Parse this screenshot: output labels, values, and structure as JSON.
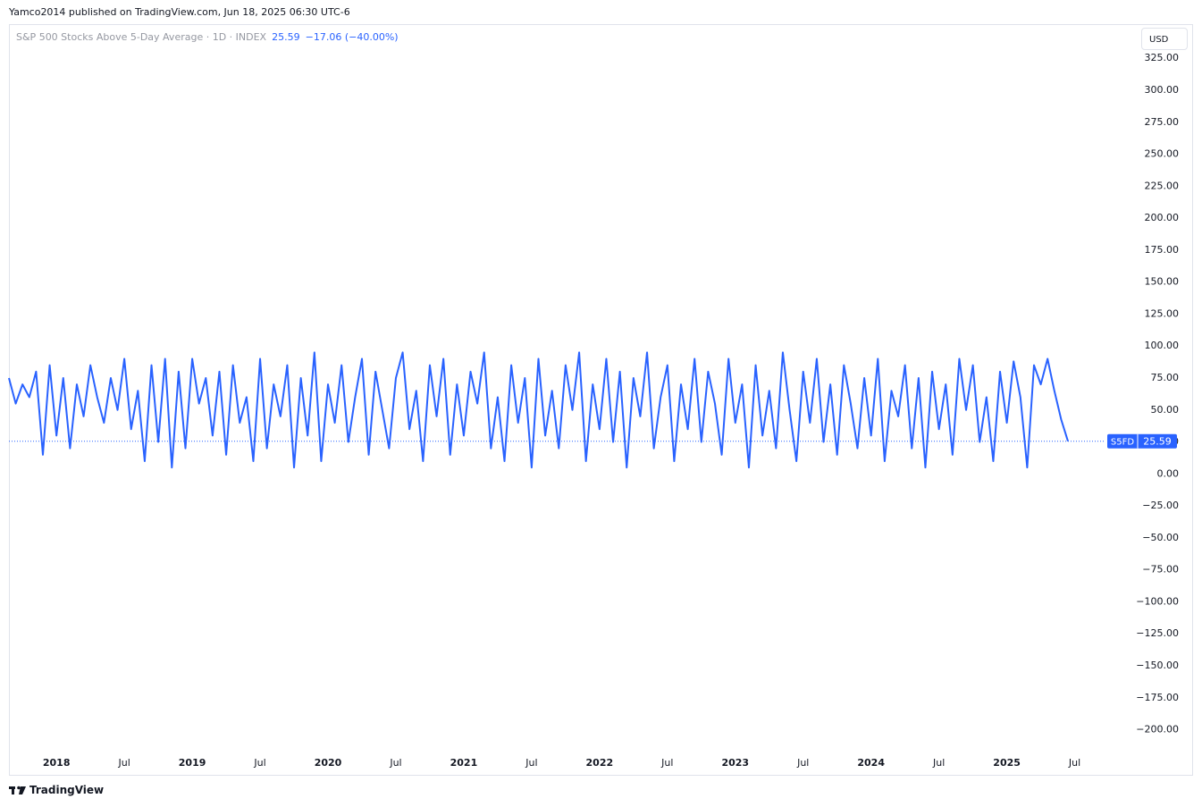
{
  "header": {
    "publisher": "Yamco2014 published on TradingView.com, Jun 18, 2025 06:30 UTC-6",
    "brand": "TradingView"
  },
  "chart_data": {
    "type": "line",
    "title": "S&P 500 Stocks Above 5-Day Average · 1D · INDEX",
    "change_label": "−17.06 (−40.00%)",
    "currency": "USD",
    "x": [
      2017.65,
      2017.7,
      2017.75,
      2017.8,
      2017.85,
      2017.9,
      2017.95,
      2018,
      2018.05,
      2018.1,
      2018.15,
      2018.2,
      2018.25,
      2018.3,
      2018.35,
      2018.4,
      2018.45,
      2018.5,
      2018.55,
      2018.6,
      2018.65,
      2018.7,
      2018.75,
      2018.8,
      2018.85,
      2018.9,
      2018.95,
      2019,
      2019.05,
      2019.1,
      2019.15,
      2019.2,
      2019.25,
      2019.3,
      2019.35,
      2019.4,
      2019.45,
      2019.5,
      2019.55,
      2019.6,
      2019.65,
      2019.7,
      2019.75,
      2019.8,
      2019.85,
      2019.9,
      2019.95,
      2020,
      2020.05,
      2020.1,
      2020.15,
      2020.2,
      2020.25,
      2020.3,
      2020.35,
      2020.4,
      2020.45,
      2020.5,
      2020.55,
      2020.6,
      2020.65,
      2020.7,
      2020.75,
      2020.8,
      2020.85,
      2020.9,
      2020.95,
      2021,
      2021.05,
      2021.1,
      2021.15,
      2021.2,
      2021.25,
      2021.3,
      2021.35,
      2021.4,
      2021.45,
      2021.5,
      2021.55,
      2021.6,
      2021.65,
      2021.7,
      2021.75,
      2021.8,
      2021.85,
      2021.9,
      2021.95,
      2022,
      2022.05,
      2022.1,
      2022.15,
      2022.2,
      2022.25,
      2022.3,
      2022.35,
      2022.4,
      2022.45,
      2022.5,
      2022.55,
      2022.6,
      2022.65,
      2022.7,
      2022.75,
      2022.8,
      2022.85,
      2022.9,
      2022.95,
      2023,
      2023.05,
      2023.1,
      2023.15,
      2023.2,
      2023.25,
      2023.3,
      2023.35,
      2023.4,
      2023.45,
      2023.5,
      2023.55,
      2023.6,
      2023.65,
      2023.7,
      2023.75,
      2023.8,
      2023.85,
      2023.9,
      2023.95,
      2024,
      2024.05,
      2024.1,
      2024.15,
      2024.2,
      2024.25,
      2024.3,
      2024.35,
      2024.4,
      2024.45,
      2024.5,
      2024.55,
      2024.6,
      2024.65,
      2024.7,
      2024.75,
      2024.8,
      2024.85,
      2024.9,
      2024.95,
      2025,
      2025.05,
      2025.1,
      2025.15,
      2025.2,
      2025.25,
      2025.3,
      2025.35,
      2025.4,
      2025.45
    ],
    "series": [
      {
        "name": "S5FD",
        "color": "#2962ff",
        "values": [
          75,
          55,
          70,
          60,
          80,
          15,
          85,
          30,
          75,
          20,
          70,
          45,
          85,
          60,
          40,
          75,
          50,
          90,
          35,
          65,
          10,
          85,
          25,
          90,
          5,
          80,
          20,
          90,
          55,
          75,
          30,
          80,
          15,
          85,
          40,
          60,
          10,
          90,
          20,
          70,
          45,
          85,
          5,
          75,
          30,
          95,
          10,
          70,
          40,
          85,
          25,
          60,
          90,
          15,
          80,
          50,
          20,
          75,
          95,
          35,
          65,
          10,
          85,
          45,
          90,
          15,
          70,
          30,
          80,
          55,
          95,
          20,
          60,
          10,
          85,
          40,
          75,
          5,
          90,
          30,
          65,
          20,
          85,
          50,
          95,
          10,
          70,
          35,
          90,
          25,
          80,
          5,
          75,
          45,
          95,
          20,
          60,
          85,
          10,
          70,
          35,
          90,
          25,
          80,
          55,
          15,
          90,
          40,
          70,
          5,
          85,
          30,
          65,
          20,
          95,
          50,
          10,
          80,
          40,
          90,
          25,
          70,
          15,
          85,
          55,
          20,
          75,
          30,
          90,
          10,
          65,
          45,
          85,
          20,
          75,
          5,
          80,
          35,
          70,
          15,
          90,
          50,
          85,
          25,
          60,
          10,
          80,
          40,
          88,
          60,
          5,
          85,
          70,
          90,
          65,
          42.65,
          25.59
        ]
      }
    ],
    "xlim": [
      2017.65,
      2025.72
    ],
    "xticks": [
      2018,
      {
        "value": 2018.5,
        "label": "Jul"
      },
      2019,
      {
        "value": 2019.5,
        "label": "Jul"
      },
      2020,
      {
        "value": 2020.5,
        "label": "Jul"
      },
      2021,
      {
        "value": 2021.5,
        "label": "Jul"
      },
      2022,
      {
        "value": 2022.5,
        "label": "Jul"
      },
      2023,
      {
        "value": 2023.5,
        "label": "Jul"
      },
      2024,
      {
        "value": 2024.5,
        "label": "Jul"
      },
      2025,
      {
        "value": 2025.5,
        "label": "Jul"
      }
    ],
    "ylim": [
      -215,
      351
    ],
    "yticks": [
      {
        "value": 325,
        "label": "325.00"
      },
      {
        "value": 300,
        "label": "300.00"
      },
      {
        "value": 275,
        "label": "275.00"
      },
      {
        "value": 250,
        "label": "250.00"
      },
      {
        "value": 225,
        "label": "225.00"
      },
      {
        "value": 200,
        "label": "200.00"
      },
      {
        "value": 175,
        "label": "175.00"
      },
      {
        "value": 150,
        "label": "150.00"
      },
      {
        "value": 125,
        "label": "125.00"
      },
      {
        "value": 100,
        "label": "100.00"
      },
      {
        "value": 75,
        "label": "75.00"
      },
      {
        "value": 50,
        "label": "50.00"
      },
      {
        "value": 25,
        "label": "25.00"
      },
      {
        "value": 0,
        "label": "0.00"
      },
      {
        "value": -25,
        "label": "−25.00"
      },
      {
        "value": -50,
        "label": "−50.00"
      },
      {
        "value": -75,
        "label": "−75.00"
      },
      {
        "value": -100,
        "label": "−100.00"
      },
      {
        "value": -125,
        "label": "−125.00"
      },
      {
        "value": -150,
        "label": "−150.00"
      },
      {
        "value": -175,
        "label": "−175.00"
      },
      {
        "value": -200,
        "label": "−200.00"
      }
    ],
    "grid": false
  }
}
